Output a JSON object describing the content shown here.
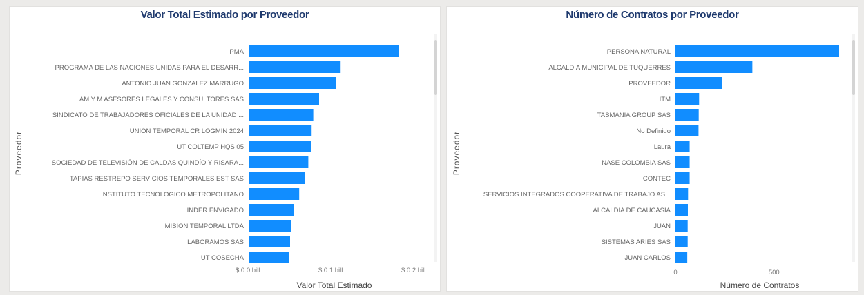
{
  "charts": [
    {
      "id": "valor",
      "type": "bar",
      "orientation": "horizontal",
      "title": "Valor Total Estimado por Proveedor",
      "xlabel": "Valor Total Estimado",
      "ylabel": "Proveedor",
      "bar_color": "#118DFF",
      "xlim": [
        0,
        0.2
      ],
      "x_ticks": [
        0,
        0.1,
        0.2
      ],
      "x_tick_labels": [
        "$ 0.0 bill.",
        "$ 0.1 bill.",
        "$ 0.2 bill."
      ],
      "categories": [
        "PMA",
        "PROGRAMA DE LAS NACIONES UNIDAS PARA EL DESARR...",
        "ANTONIO JUAN GONZALEZ MARRUGO",
        "AM Y M ASESORES LEGALES Y CONSULTORES SAS",
        "SINDICATO DE TRABAJADORES OFICIALES DE LA UNIDAD ...",
        "UNIÓN TEMPORAL CR LOGMIN 2024",
        "UT COLTEMP HQS 05",
        "SOCIEDAD DE TELEVISIÓN DE CALDAS QUINDÍO Y RISARA...",
        "TAPIAS RESTREPO SERVICIOS TEMPORALES EST SAS",
        "INSTITUTO TECNOLOGICO METROPOLITANO",
        "INDER ENVIGADO",
        "MISION TEMPORAL LTDA",
        "LABORAMOS SAS",
        "UT COSECHA"
      ],
      "values": [
        0.181,
        0.111,
        0.105,
        0.085,
        0.078,
        0.076,
        0.075,
        0.072,
        0.068,
        0.061,
        0.055,
        0.051,
        0.05,
        0.049
      ]
    },
    {
      "id": "contratos",
      "type": "bar",
      "orientation": "horizontal",
      "title": "Número de Contratos por Proveedor",
      "xlabel": "Número de Contratos",
      "ylabel": "Proveedor",
      "bar_color": "#118DFF",
      "xlim": [
        0,
        900
      ],
      "x_ticks": [
        0,
        500
      ],
      "x_tick_labels": [
        "0",
        "500"
      ],
      "categories": [
        "PERSONA NATURAL",
        "ALCALDIA MUNICIPAL DE TUQUERRES",
        "PROVEEDOR",
        "ITM",
        "TASMANIA GROUP SAS",
        "No Definido",
        "Laura",
        "NASE COLOMBIA SAS",
        "ICONTEC",
        "SERVICIOS INTEGRADOS COOPERATIVA DE TRABAJO AS...",
        "ALCALDIA DE CAUCASIA",
        "JUAN",
        "SISTEMAS ARIES SAS",
        "JUAN CARLOS"
      ],
      "values": [
        830,
        390,
        235,
        120,
        118,
        117,
        72,
        72,
        72,
        64,
        63,
        62,
        62,
        60
      ]
    }
  ]
}
